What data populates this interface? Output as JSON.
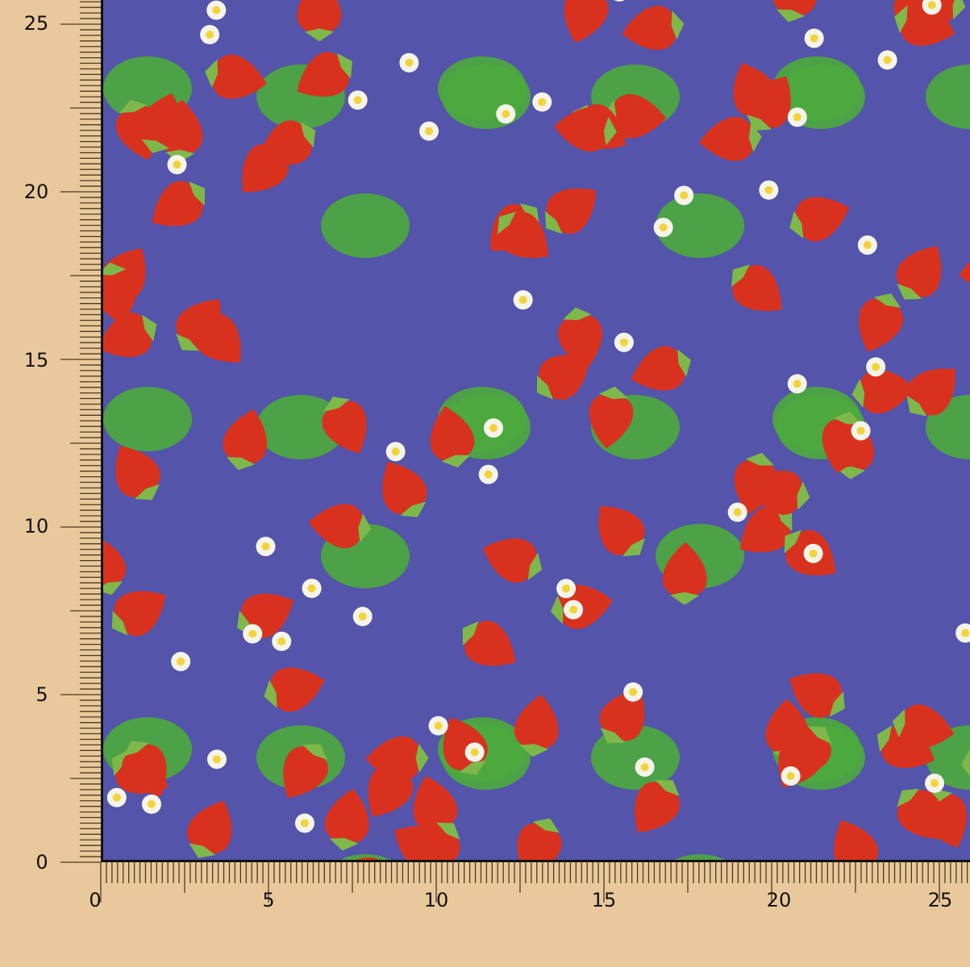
{
  "image": {
    "subject": "strawberry print fabric swatch",
    "colors": {
      "background": "#e9c99b",
      "fabric": "#5454aa",
      "strawberry": "#d8321e",
      "leaf": "#4caa3c",
      "flower": "#f4f4ea",
      "flower_center": "#f2d43a"
    }
  },
  "ruler": {
    "x_labels": [
      "0",
      "5",
      "10",
      "15",
      "20",
      "25"
    ],
    "y_labels": [
      "0",
      "5",
      "10",
      "15",
      "20",
      "25"
    ],
    "minor_ticks_per_unit": 6
  }
}
